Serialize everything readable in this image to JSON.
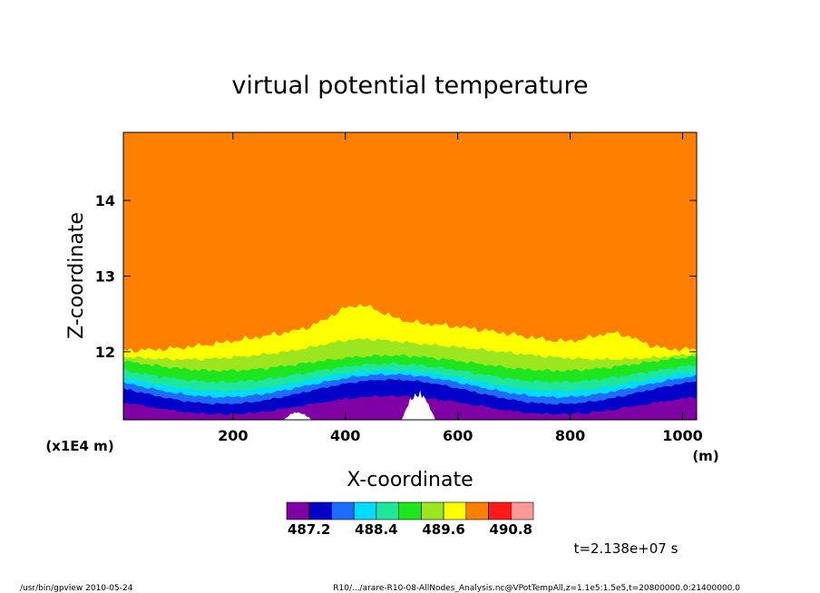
{
  "chart_data": {
    "type": "heatmap",
    "title": "virtual potential temperature",
    "xlabel": "X-coordinate",
    "ylabel": "Z-coordinate",
    "x_unit": "(m)",
    "y_scale_note": "(x1E4 m)",
    "xlim": [
      5,
      1025
    ],
    "ylim": [
      11.1,
      14.9
    ],
    "x_ticks": [
      200,
      400,
      600,
      800,
      1000
    ],
    "y_ticks": [
      12,
      13,
      14
    ],
    "colorbar": {
      "colors": [
        "#7f00a4",
        "#0000c8",
        "#1e6cff",
        "#00dcff",
        "#1ee69b",
        "#1ee61e",
        "#9be61e",
        "#ffff00",
        "#ff7f00",
        "#ff1a1a",
        "#ff9999"
      ],
      "tick_labels": [
        "487.2",
        "488.4",
        "489.6",
        "490.8"
      ]
    },
    "time_label": "t=2.138e+07 s"
  },
  "footer": {
    "left": "/usr/bin/gpview   2010-05-24",
    "right": "R10/.../arare-R10-08-AllNodes_Analysis.nc@VPotTempAll,z=1.1e5:1.5e5,t=20800000.0:21400000.0"
  }
}
